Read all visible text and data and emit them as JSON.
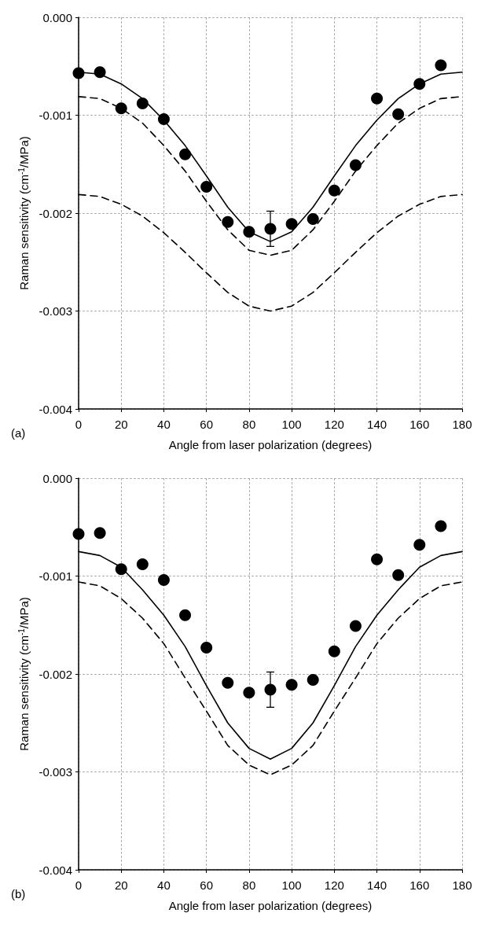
{
  "chart_data": [
    {
      "type": "scatter",
      "xlabel": "Angle from laser polarization (degrees)",
      "ylabel": "Raman sensitivity (cm$^{-1}$/MPa)",
      "annotations": [
        "(a)"
      ],
      "xlim": [
        0,
        180
      ],
      "ylim": [
        -0.004,
        0
      ],
      "xticks": [
        0,
        20,
        40,
        60,
        80,
        100,
        120,
        140,
        160,
        180
      ],
      "yticks": [
        {
          "value": -0.004,
          "label": "-0.004"
        },
        {
          "value": -0.003,
          "label": "-0.003"
        },
        {
          "value": -0.002,
          "label": "-0.002"
        },
        {
          "value": -0.001,
          "label": "-0.001"
        },
        {
          "value": 0,
          "label": "0.000"
        }
      ],
      "grid": true,
      "series": [
        {
          "color": "#000000",
          "marker": "circle",
          "x": [
            0,
            10,
            20,
            30,
            40,
            50,
            60,
            70,
            80,
            90,
            100,
            110,
            120,
            130,
            140,
            150,
            160,
            170
          ],
          "values": [
            -0.00057,
            -0.00056,
            -0.00093,
            -0.00088,
            -0.00104,
            -0.0014,
            -0.00173,
            -0.00209,
            -0.00219,
            -0.00216,
            -0.00211,
            -0.00206,
            -0.00177,
            -0.00151,
            -0.00083,
            -0.00099,
            -0.00068,
            -0.00049
          ],
          "errors": [
            null,
            null,
            null,
            null,
            null,
            null,
            null,
            null,
            null,
            0.00018,
            null,
            null,
            null,
            null,
            null,
            null,
            null,
            null
          ]
        },
        {
          "type": "line",
          "color": "#000000",
          "marker": "none",
          "line_style": "solid",
          "x": [
            0,
            10,
            20,
            30,
            40,
            50,
            60,
            70,
            80,
            90,
            100,
            110,
            120,
            130,
            140,
            150,
            160,
            170,
            180
          ],
          "values": [
            -0.00056,
            -0.00058,
            -0.00068,
            -0.00083,
            -0.00105,
            -0.00131,
            -0.00162,
            -0.00194,
            -0.00219,
            -0.00229,
            -0.00219,
            -0.00194,
            -0.00162,
            -0.00131,
            -0.00105,
            -0.00083,
            -0.00068,
            -0.00058,
            -0.00056
          ]
        },
        {
          "type": "line",
          "color": "#000000",
          "marker": "none",
          "line_style": "dashed",
          "x": [
            0,
            10,
            20,
            30,
            40,
            50,
            60,
            70,
            80,
            90,
            100,
            110,
            120,
            130,
            140,
            150,
            160,
            170,
            180
          ],
          "values": [
            -0.00081,
            -0.00083,
            -0.00093,
            -0.00108,
            -0.00131,
            -0.00157,
            -0.00188,
            -0.00217,
            -0.00238,
            -0.00243,
            -0.00238,
            -0.00217,
            -0.00188,
            -0.00157,
            -0.00131,
            -0.00108,
            -0.00093,
            -0.00083,
            -0.00081
          ]
        },
        {
          "type": "line",
          "color": "#000000",
          "marker": "none",
          "line_style": "dashed",
          "x": [
            0,
            10,
            20,
            30,
            40,
            50,
            60,
            70,
            80,
            90,
            100,
            110,
            120,
            130,
            140,
            150,
            160,
            170,
            180
          ],
          "values": [
            -0.00181,
            -0.00183,
            -0.00191,
            -0.00203,
            -0.0022,
            -0.0024,
            -0.00261,
            -0.00281,
            -0.00295,
            -0.003,
            -0.00295,
            -0.00281,
            -0.00261,
            -0.0024,
            -0.0022,
            -0.00203,
            -0.00191,
            -0.00183,
            -0.00181
          ]
        }
      ]
    },
    {
      "type": "scatter",
      "xlabel": "Angle from laser polarization (degrees)",
      "ylabel": "Raman sensitivity (cm$^{-1}$/MPa)",
      "annotations": [
        "(b)"
      ],
      "xlim": [
        0,
        180
      ],
      "ylim": [
        -0.004,
        0
      ],
      "xticks": [
        0,
        20,
        40,
        60,
        80,
        100,
        120,
        140,
        160,
        180
      ],
      "yticks": [
        {
          "value": -0.004,
          "label": "-0.004"
        },
        {
          "value": -0.003,
          "label": "-0.003"
        },
        {
          "value": -0.002,
          "label": "-0.002"
        },
        {
          "value": -0.001,
          "label": "-0.001"
        },
        {
          "value": 0,
          "label": "0.000"
        }
      ],
      "grid": true,
      "series": [
        {
          "color": "#000000",
          "marker": "circle",
          "x": [
            0,
            10,
            20,
            30,
            40,
            50,
            60,
            70,
            80,
            90,
            100,
            110,
            120,
            130,
            140,
            150,
            160,
            170
          ],
          "values": [
            -0.00057,
            -0.00056,
            -0.00093,
            -0.00088,
            -0.00104,
            -0.0014,
            -0.00173,
            -0.00209,
            -0.00219,
            -0.00216,
            -0.00211,
            -0.00206,
            -0.00177,
            -0.00151,
            -0.00083,
            -0.00099,
            -0.00068,
            -0.00049
          ],
          "errors": [
            null,
            null,
            null,
            null,
            null,
            null,
            null,
            null,
            null,
            0.00018,
            null,
            null,
            null,
            null,
            null,
            null,
            null,
            null
          ]
        },
        {
          "type": "line",
          "color": "#000000",
          "marker": "none",
          "line_style": "solid",
          "x": [
            0,
            10,
            20,
            30,
            40,
            50,
            60,
            70,
            80,
            90,
            100,
            110,
            120,
            130,
            140,
            150,
            160,
            170,
            180
          ],
          "values": [
            -0.00075,
            -0.00079,
            -0.00091,
            -0.00114,
            -0.0014,
            -0.00172,
            -0.00212,
            -0.0025,
            -0.00276,
            -0.00287,
            -0.00276,
            -0.0025,
            -0.00212,
            -0.00172,
            -0.0014,
            -0.00114,
            -0.00091,
            -0.00079,
            -0.00075
          ]
        },
        {
          "type": "line",
          "color": "#000000",
          "marker": "none",
          "line_style": "dashed",
          "x": [
            0,
            10,
            20,
            30,
            40,
            50,
            60,
            70,
            80,
            90,
            100,
            110,
            120,
            130,
            140,
            150,
            160,
            170,
            180
          ],
          "values": [
            -0.00106,
            -0.0011,
            -0.00123,
            -0.00143,
            -0.00169,
            -0.00204,
            -0.00238,
            -0.00273,
            -0.00293,
            -0.00303,
            -0.00293,
            -0.00273,
            -0.00238,
            -0.00204,
            -0.00169,
            -0.00143,
            -0.00123,
            -0.0011,
            -0.00106
          ]
        }
      ]
    }
  ]
}
